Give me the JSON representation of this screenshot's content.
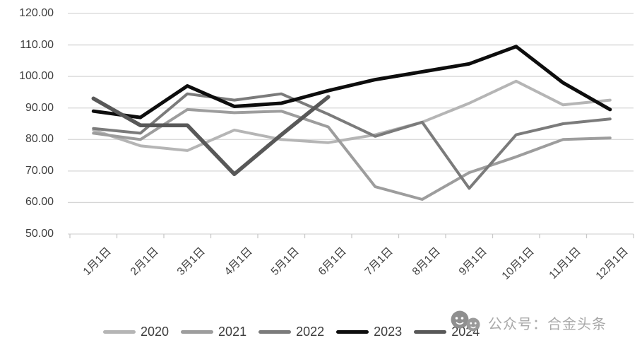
{
  "chart_data": {
    "type": "line",
    "x": [
      "1月1日",
      "2月1日",
      "3月1日",
      "4月1日",
      "5月1日",
      "6月1日",
      "7月1日",
      "8月1日",
      "9月1日",
      "10月1日",
      "11月1日",
      "12月1日"
    ],
    "series": [
      {
        "name": "2020",
        "color": "#b5b5b5",
        "width": 4,
        "values": [
          83,
          78,
          76.5,
          83,
          80,
          79,
          81.5,
          85.5,
          91.5,
          98.5,
          91,
          92.5
        ]
      },
      {
        "name": "2021",
        "color": "#9d9d9d",
        "width": 4,
        "values": [
          82,
          80,
          89.5,
          88.5,
          89,
          84,
          65,
          61,
          69.5,
          74.5,
          80,
          80.5
        ]
      },
      {
        "name": "2022",
        "color": "#7b7b7b",
        "width": 4,
        "values": [
          83.5,
          82,
          94.5,
          92.5,
          94.5,
          88,
          81,
          85.5,
          64.5,
          81.5,
          85,
          86.5
        ]
      },
      {
        "name": "2023",
        "color": "#0d0d0d",
        "width": 5,
        "values": [
          89,
          87,
          97,
          90.5,
          91.5,
          95.5,
          99,
          101.5,
          104,
          109.5,
          98,
          89.5
        ]
      },
      {
        "name": "2024",
        "color": "#585858",
        "width": 5.5,
        "values": [
          93,
          84.5,
          84.5,
          69,
          81.5,
          93.5,
          null,
          null,
          null,
          null,
          null,
          null
        ]
      }
    ],
    "title": "",
    "xlabel": "",
    "ylabel": "",
    "ylim": [
      50,
      120
    ],
    "ytick_step": 10,
    "ytick_labels_top_down": [
      "120.00",
      "110.00",
      "100.00",
      "90.00",
      "80.00",
      "70.00",
      "60.00",
      "50.00"
    ],
    "grid": true,
    "gridline_color": "#d6d6d6",
    "axis_tick_color": "#c9c9c9",
    "legend_position": "bottom"
  },
  "legend": {
    "items": [
      "2020",
      "2021",
      "2022",
      "2023",
      "2024"
    ]
  },
  "watermark": {
    "text": "公众号：合金头条",
    "icon": "wechat-smiley-faces-icon",
    "icon_color": "#8f8f8f",
    "text_color": "#a9a9a9"
  }
}
